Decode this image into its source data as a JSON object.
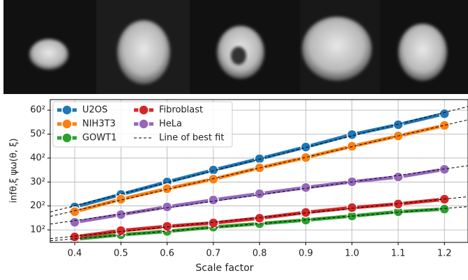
{
  "chart_data": {
    "type": "line",
    "xlabel": "Scale factor",
    "ylabel": "infθ,ξ ψω(θ, ξ)",
    "x": [
      0.4,
      0.5,
      0.6,
      0.7,
      0.8,
      0.9,
      1.0,
      1.1,
      1.2
    ],
    "series": [
      {
        "name": "U2OS",
        "color": "#1f77b4",
        "values": [
          384,
          615,
          900,
          1225,
          1576,
          1989,
          2480,
          2905,
          3422
        ]
      },
      {
        "name": "NIH3T3",
        "color": "#ff7f0e",
        "values": [
          310,
          520,
          740,
          973,
          1289,
          1616,
          2016,
          2421,
          2873
        ]
      },
      {
        "name": "GOWT1",
        "color": "#2ca02c",
        "values": [
          38,
          64,
          88,
          125,
          159,
          199,
          250,
          310,
          350
        ]
      },
      {
        "name": "Fibroblast",
        "color": "#d62728",
        "values": [
          50,
          94,
          132,
          166,
          222,
          299,
          372,
          433,
          520
        ]
      },
      {
        "name": "HeLa",
        "color": "#9467bd",
        "values": [
          174,
          269,
          384,
          506,
          630,
          767,
          906,
          1030,
          1246
        ]
      }
    ],
    "fit_label": "Line of best fit",
    "yscale": "sqrt",
    "xlim": [
      0.347,
      1.251
    ],
    "ylim": [
      23,
      4147
    ],
    "xticks": [
      0.4,
      0.5,
      0.6,
      0.7,
      0.8,
      0.9,
      {
        "value": 1,
        "label": "1.0"
      },
      1.1,
      1.2
    ],
    "yticks": [
      {
        "value": 100,
        "label": "10²"
      },
      {
        "value": 400,
        "label": "20²"
      },
      {
        "value": 900,
        "label": "30²"
      },
      {
        "value": 1600,
        "label": "40²"
      },
      {
        "value": 2500,
        "label": "50²"
      },
      {
        "value": 3600,
        "label": "60²"
      }
    ],
    "grid": true,
    "legend": "upper left"
  }
}
